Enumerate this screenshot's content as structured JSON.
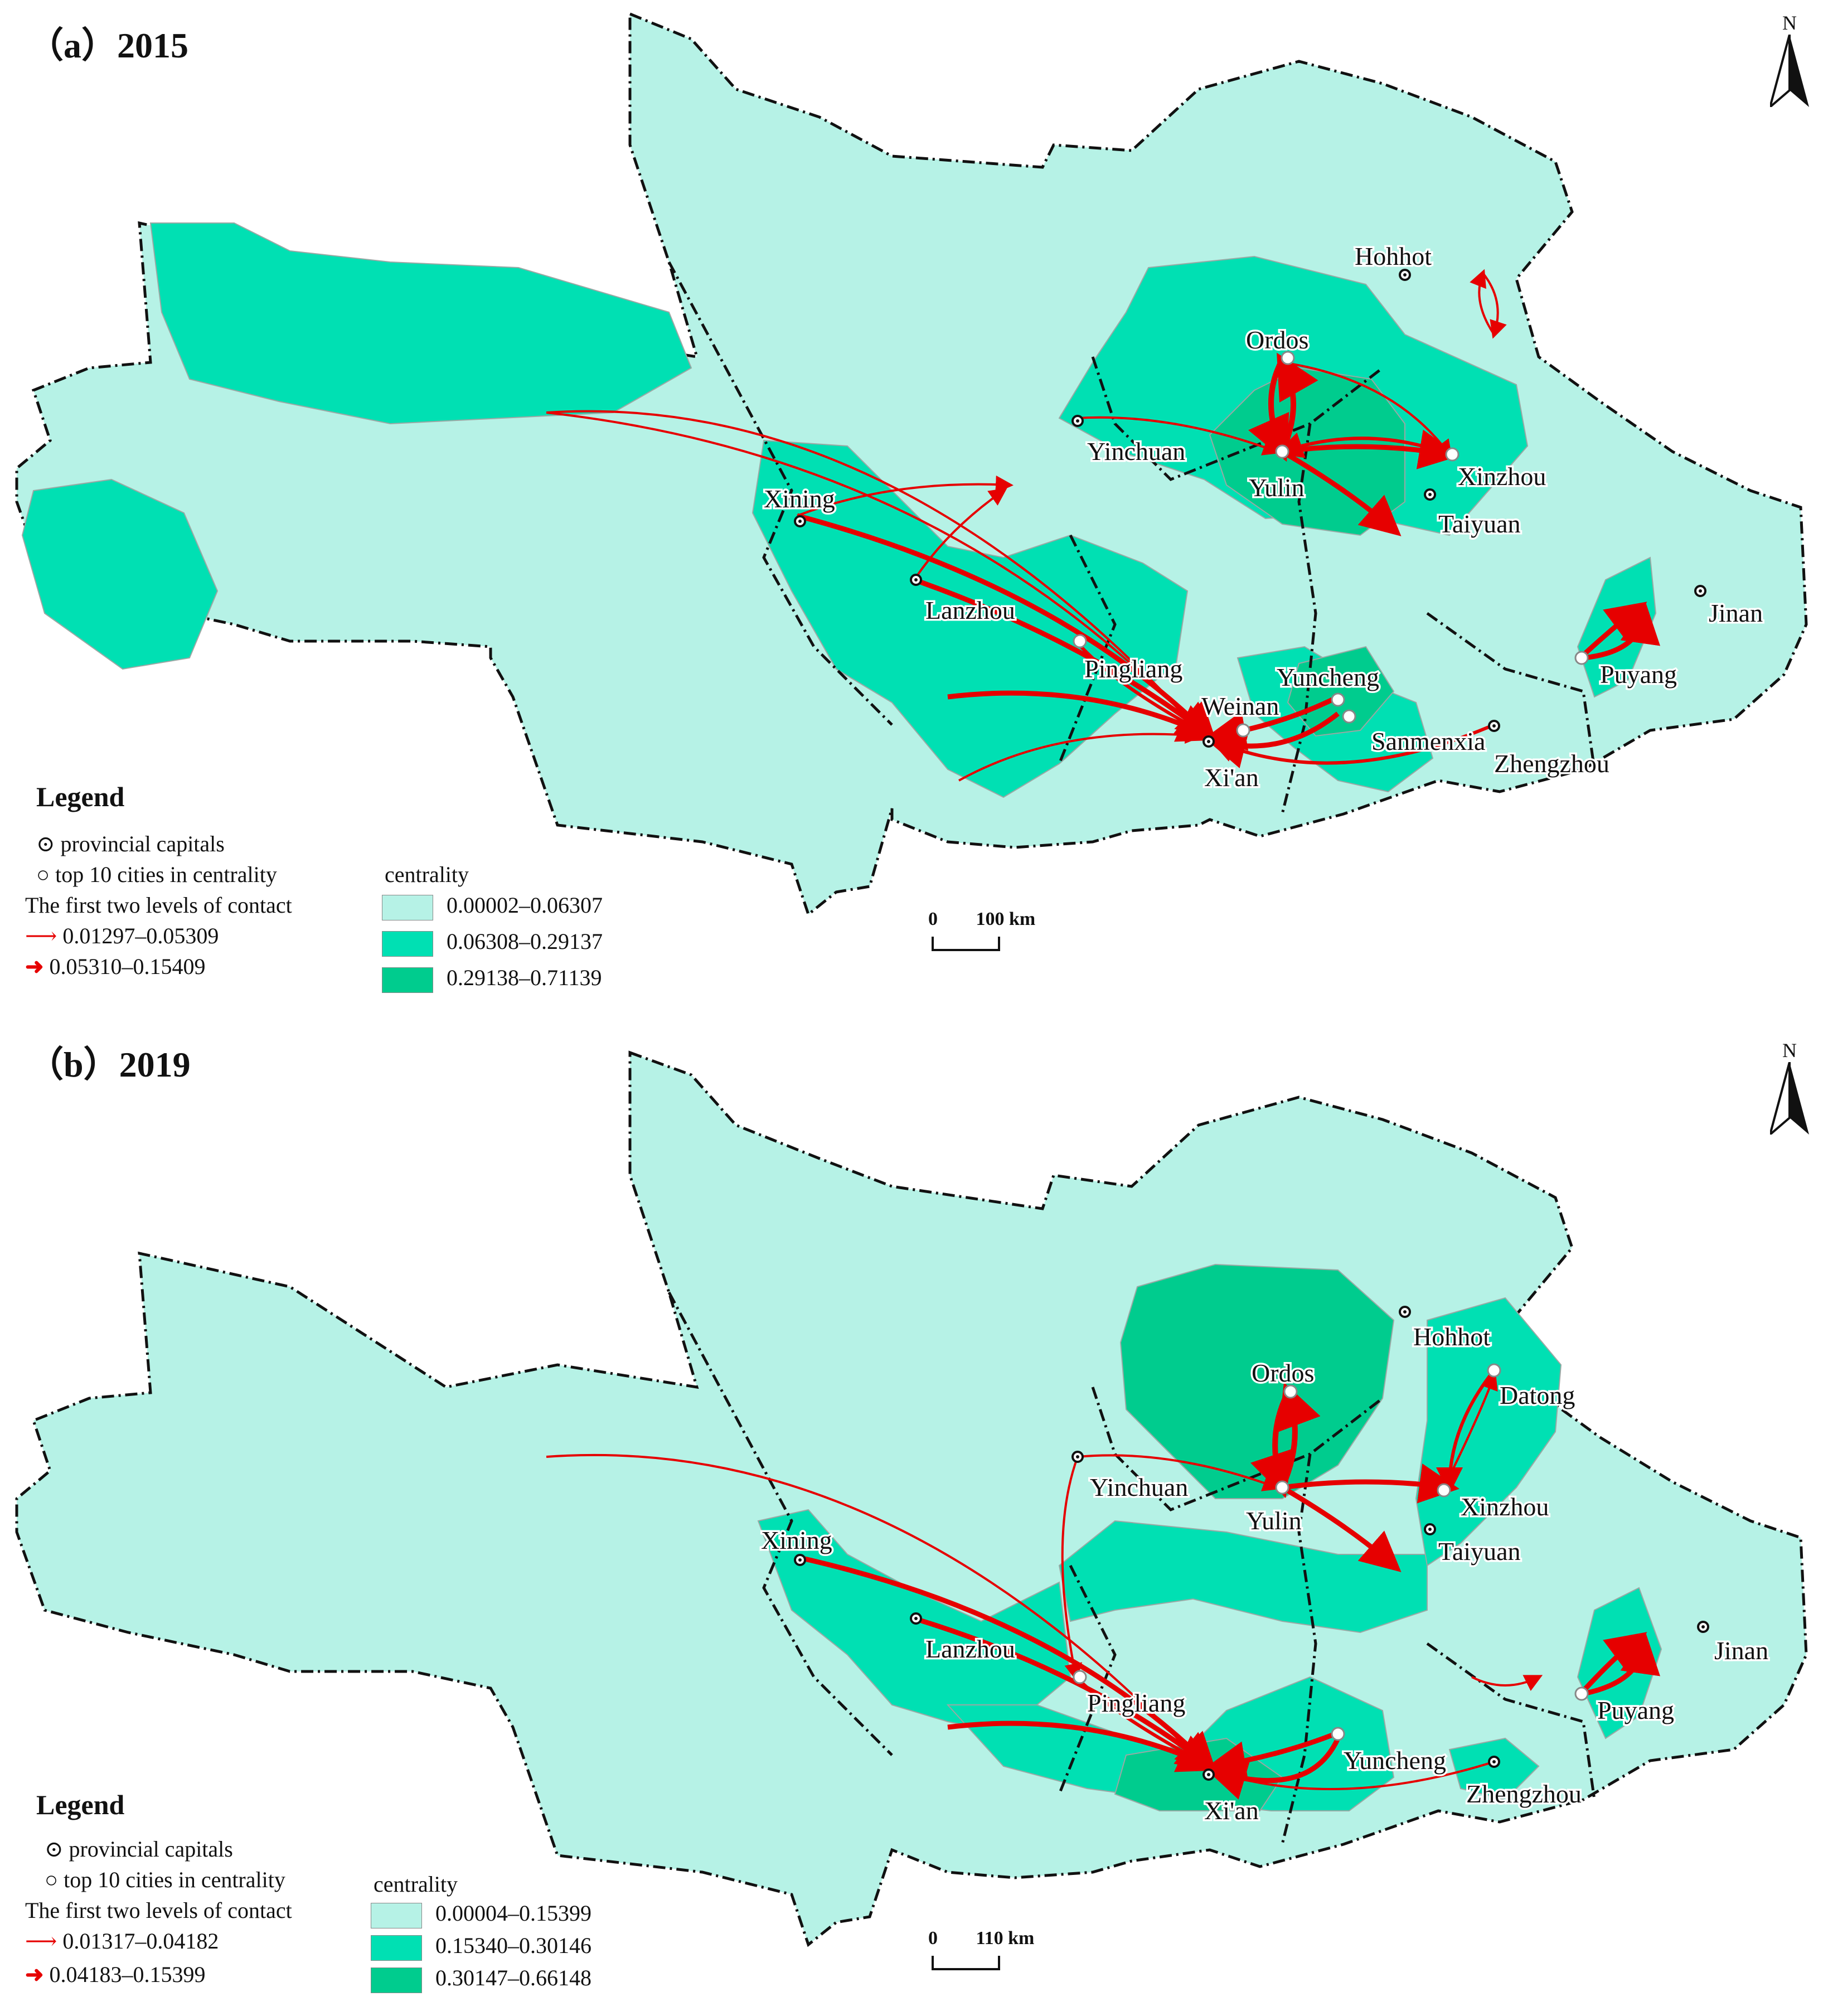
{
  "panels": [
    {
      "title": "（a）2015",
      "north_label": "N",
      "cities": {
        "hohhot": "Hohhot",
        "ordos": "Ordos",
        "yinchuan": "Yinchuan",
        "yulin": "Yulin",
        "xinzhou": "Xinzhou",
        "taiyuan": "Taiyuan",
        "xining": "Xining",
        "lanzhou": "Lanzhou",
        "pingliang": "Pingliang",
        "yuncheng": "Yuncheng",
        "weinan": "Weinan",
        "xian": "Xi'an",
        "sanmenxia": "Sanmenxia",
        "zhengzhou": "Zhengzhou",
        "jinan": "Jinan",
        "puyang": "Puyang"
      },
      "legend": {
        "title": "Legend",
        "capitals": "provincial capitals",
        "top10": "top 10 cities in centrality",
        "contact_title": "The first two levels of contact",
        "contact_levels": [
          "0.01297–0.05309",
          "0.05310–0.15409"
        ],
        "centrality_title": "centrality",
        "centrality_classes": [
          "0.00002–0.06307",
          "0.06308–0.29137",
          "0.29138–0.71139"
        ]
      },
      "scale": {
        "zero": "0",
        "distance": "100 km"
      }
    },
    {
      "title": "（b）2019",
      "north_label": "N",
      "cities": {
        "hohhot": "Hohhot",
        "ordos": "Ordos",
        "datong": "Datong",
        "yinchuan": "Yinchuan",
        "yulin": "Yulin",
        "xinzhou": "Xinzhou",
        "taiyuan": "Taiyuan",
        "xining": "Xining",
        "lanzhou": "Lanzhou",
        "pingliang": "Pingliang",
        "jinan": "Jinan",
        "puyang": "Puyang",
        "yuncheng": "Yuncheng",
        "zhengzhou": "Zhengzhou",
        "xian": "Xi'an"
      },
      "legend": {
        "title": "Legend",
        "capitals": "provincial capitals",
        "top10": "top 10 cities in centrality",
        "contact_title": "The first two levels of contact",
        "contact_levels": [
          "0.01317–0.04182",
          "0.04183–0.15399"
        ],
        "centrality_title": "centrality",
        "centrality_classes": [
          "0.00004–0.15399",
          "0.15340–0.30146",
          "0.30147–0.66148"
        ]
      },
      "scale": {
        "zero": "0",
        "distance": "110 km"
      }
    }
  ],
  "colors": {
    "low": "#b6f2e6",
    "mid": "#00e0b3",
    "high": "#00cc8e",
    "flow": "#e60000",
    "boundary": "#111111"
  }
}
